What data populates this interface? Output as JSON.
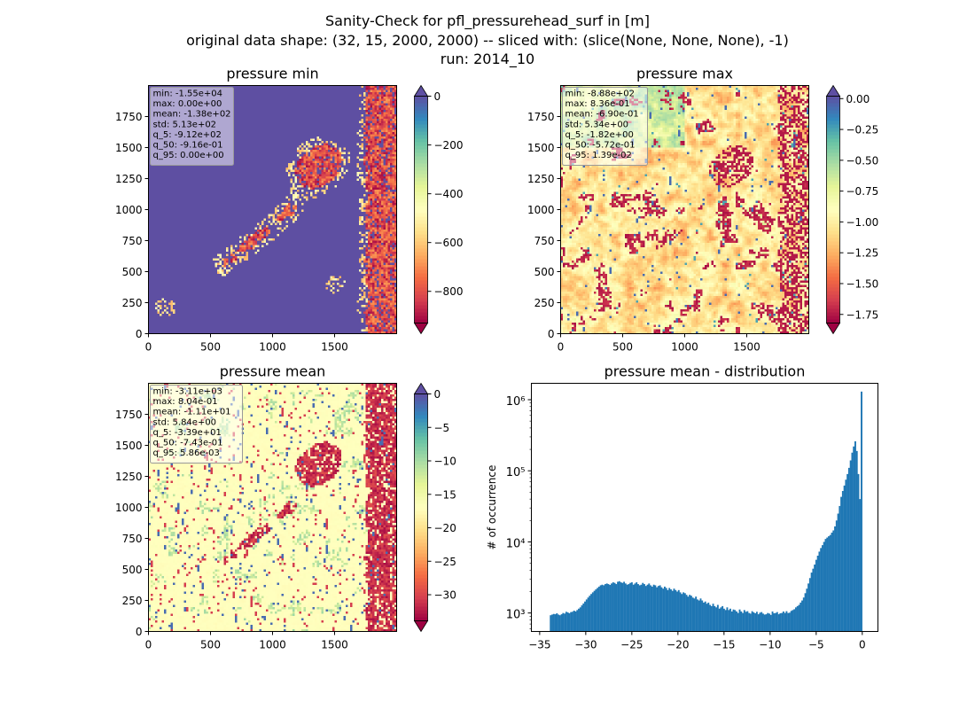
{
  "figure": {
    "title_line1": "Sanity-Check for pfl_pressurehead_surf in [m]",
    "title_line2": "original data shape: (32, 15, 2000, 2000) -- sliced with: (slice(None, None, None), -1)",
    "title_line3": "run: 2014_10"
  },
  "colormap": {
    "name": "Spectral",
    "stops": [
      "#9e0142",
      "#d53e4f",
      "#f46d43",
      "#fdae61",
      "#fee08b",
      "#ffffbf",
      "#e6f598",
      "#abdda4",
      "#66c2a5",
      "#3288bd",
      "#5e4fa2"
    ]
  },
  "chart_data": [
    {
      "type": "heatmap",
      "title": "pressure min",
      "field": "min",
      "xlim": [
        0,
        2000
      ],
      "ylim": [
        0,
        2000
      ],
      "xticks": [
        "0",
        "500",
        "1000",
        "1500"
      ],
      "yticks": [
        "0",
        "250",
        "500",
        "750",
        "1000",
        "1250",
        "1500",
        "1750"
      ],
      "color_range": [
        -930,
        0
      ],
      "colorbar_ticks": [
        "0",
        "−200",
        "−400",
        "−600",
        "−800"
      ],
      "colorbar_tick_values": [
        0,
        -200,
        -400,
        -600,
        -800
      ],
      "colorbar_extend": "both",
      "stats": [
        "min: -1.55e+04",
        "max: 0.00e+00",
        "mean: -1.38e+02",
        "std: 5.13e+02",
        "q_5: -9.12e+02",
        "q_50: -9.16e-01",
        "q_95: 0.00e+00"
      ]
    },
    {
      "type": "heatmap",
      "title": "pressure max",
      "field": "max",
      "xlim": [
        0,
        2000
      ],
      "ylim": [
        0,
        2000
      ],
      "xticks": [
        "0",
        "500",
        "1000",
        "1500"
      ],
      "yticks": [
        "0",
        "250",
        "500",
        "750",
        "1000",
        "1250",
        "1500",
        "1750"
      ],
      "color_range": [
        -1.82,
        0.02
      ],
      "colorbar_ticks": [
        "0.00",
        "−0.25",
        "−0.50",
        "−0.75",
        "−1.00",
        "−1.25",
        "−1.50",
        "−1.75"
      ],
      "colorbar_tick_values": [
        0,
        -0.25,
        -0.5,
        -0.75,
        -1.0,
        -1.25,
        -1.5,
        -1.75
      ],
      "colorbar_extend": "both",
      "stats": [
        "min: -8.88e+02",
        "max: 8.36e-01",
        "mean: -6.90e-01",
        "std: 5.34e+00",
        "q_5: -1.82e+00",
        "q_50: -5.72e-01",
        "q_95: 1.39e-02"
      ]
    },
    {
      "type": "heatmap",
      "title": "pressure mean",
      "field": "mean",
      "xlim": [
        0,
        2000
      ],
      "ylim": [
        0,
        2000
      ],
      "xticks": [
        "0",
        "500",
        "1000",
        "1500"
      ],
      "yticks": [
        "0",
        "250",
        "500",
        "750",
        "1000",
        "1250",
        "1500",
        "1750"
      ],
      "color_range": [
        -33.9,
        0
      ],
      "colorbar_ticks": [
        "0",
        "−5",
        "−10",
        "−15",
        "−20",
        "−25",
        "−30"
      ],
      "colorbar_tick_values": [
        0,
        -5,
        -10,
        -15,
        -20,
        -25,
        -30
      ],
      "colorbar_extend": "both",
      "stats": [
        "min: -3.11e+03",
        "max: 8.04e-01",
        "mean: -1.11e+01",
        "std: 5.84e+00",
        "q_5: -3.39e+01",
        "q_50: -7.43e-01",
        "q_95: 5.86e-03"
      ]
    },
    {
      "type": "bar",
      "title": "pressure mean - distribution",
      "xlabel": "",
      "ylabel": "# of occurrence",
      "yscale": "log",
      "xlim": [
        -35.9,
        1.7
      ],
      "ylim": [
        550,
        1700000
      ],
      "xticks": [
        -35,
        -30,
        -25,
        -20,
        -15,
        -10,
        -5,
        0
      ],
      "xtick_labels": [
        "−35",
        "−30",
        "−25",
        "−20",
        "−15",
        "−10",
        "−5",
        "0"
      ],
      "yticks": [
        1000,
        10000,
        100000,
        1000000
      ],
      "ytick_labels": [
        "10³",
        "10⁴",
        "10⁵",
        "10⁶"
      ],
      "bar_color": "#1f77b4",
      "bin_range": [
        -33.9,
        0.0
      ],
      "counts": [
        930,
        950,
        970,
        960,
        990,
        950,
        930,
        960,
        1000,
        980,
        1040,
        1020,
        990,
        1030,
        1040,
        1080,
        1050,
        1100,
        1150,
        1200,
        1280,
        1360,
        1450,
        1550,
        1650,
        1750,
        1850,
        1950,
        2050,
        2150,
        2250,
        2350,
        2450,
        2500,
        2450,
        2550,
        2600,
        2550,
        2480,
        2600,
        2700,
        2650,
        2550,
        2750,
        2800,
        2700,
        2650,
        2750,
        2600,
        2500,
        2550,
        2650,
        2700,
        2500,
        2600,
        2700,
        2550,
        2450,
        2500,
        2650,
        2550,
        2400,
        2500,
        2600,
        2450,
        2350,
        2500,
        2450,
        2300,
        2400,
        2450,
        2300,
        2200,
        2350,
        2250,
        2100,
        2250,
        2150,
        2050,
        2200,
        2100,
        2000,
        2100,
        1950,
        1850,
        1950,
        1900,
        1800,
        1700,
        1800,
        1750,
        1650,
        1600,
        1700,
        1550,
        1500,
        1600,
        1500,
        1400,
        1450,
        1350,
        1400,
        1300,
        1250,
        1350,
        1250,
        1200,
        1300,
        1150,
        1200,
        1250,
        1150,
        1100,
        1200,
        1100,
        1150,
        1050,
        1120,
        1100,
        1050,
        1000,
        1120,
        1050,
        1000,
        1100,
        1040,
        1060,
        1000,
        980,
        1060,
        1020,
        990,
        1040,
        960,
        1010,
        1030,
        980,
        950,
        960,
        1000,
        980,
        940,
        1050,
        990,
        1000,
        1030,
        960,
        990,
        1000,
        1050,
        1000,
        1060,
        1000,
        1010,
        1070,
        1100,
        1130,
        1200,
        1250,
        1300,
        1400,
        1500,
        1650,
        1900,
        2200,
        2600,
        3100,
        3700,
        4200,
        4800,
        5600,
        6400,
        7300,
        8200,
        9000,
        10000,
        11000,
        11500,
        12000,
        12500,
        13500,
        14500,
        16500,
        20000,
        25000,
        32000,
        43000,
        52000,
        62000,
        75000,
        90000,
        110000,
        140000,
        180000,
        220000,
        260000,
        190000,
        90000,
        40000,
        1300000
      ]
    }
  ]
}
